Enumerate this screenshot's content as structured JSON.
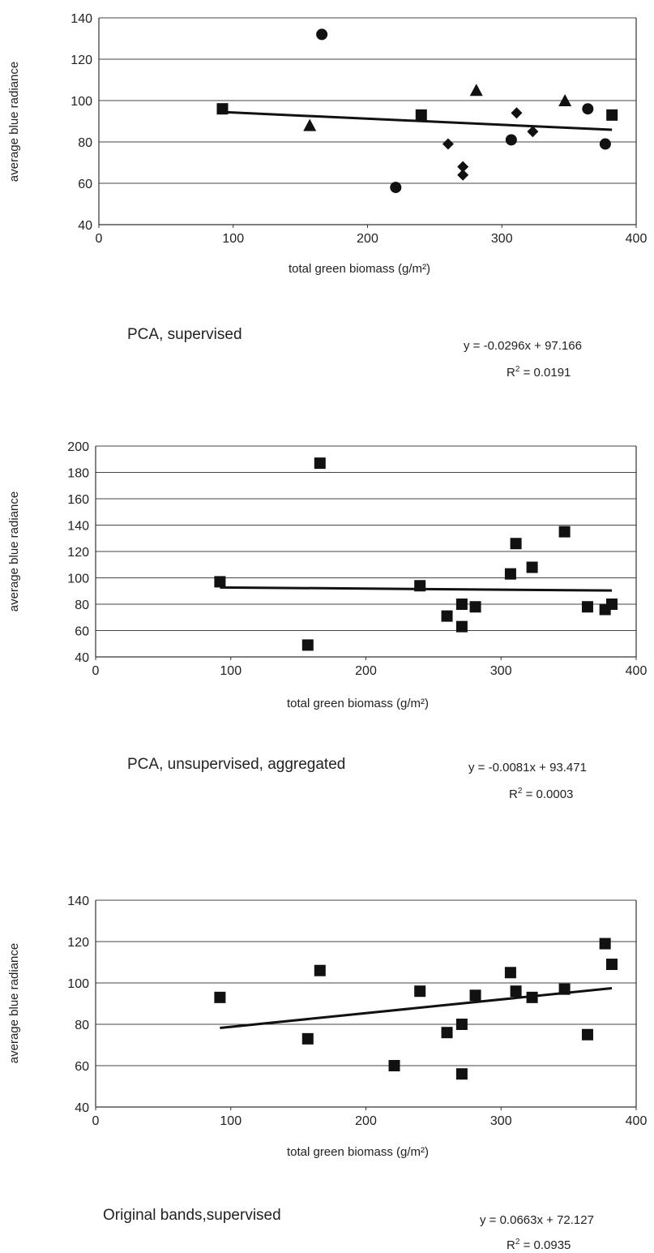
{
  "chart_data": [
    {
      "type": "scatter",
      "xlabel": "total green biomass (g/m²)",
      "ylabel": "average blue radiance",
      "xlim": [
        0,
        400
      ],
      "ylim": [
        40,
        140
      ],
      "xticks": [
        "0",
        "100",
        "200",
        "300",
        "400"
      ],
      "yticks": [
        "40",
        "60",
        "80",
        "100",
        "120",
        "140"
      ],
      "grid": "horizontal",
      "series": [
        {
          "marker": "square",
          "points": [
            [
              92,
              96
            ],
            [
              240,
              93
            ],
            [
              382,
              93
            ]
          ]
        },
        {
          "marker": "circle",
          "points": [
            [
              166,
              132
            ],
            [
              221,
              58
            ],
            [
              307,
              81
            ],
            [
              364,
              96
            ],
            [
              377,
              79
            ]
          ]
        },
        {
          "marker": "triangle",
          "points": [
            [
              157,
              88
            ],
            [
              281,
              105
            ],
            [
              347,
              100
            ]
          ]
        },
        {
          "marker": "diamond",
          "points": [
            [
              260,
              79
            ],
            [
              271,
              68
            ],
            [
              271,
              64
            ],
            [
              311,
              94
            ],
            [
              323,
              85
            ]
          ]
        }
      ],
      "trendline": {
        "slope": -0.0296,
        "intercept": 97.166,
        "x_range": [
          92,
          382
        ]
      },
      "caption": "PCA, supervised",
      "equation": "y = -0.0296x + 97.166",
      "r2_label": "R",
      "r2_sup": "2",
      "r2_value": " = 0.0191"
    },
    {
      "type": "scatter",
      "xlabel": "total green biomass (g/m²)",
      "ylabel": "average blue radiance",
      "xlim": [
        0,
        400
      ],
      "ylim": [
        40,
        200
      ],
      "xticks": [
        "0",
        "100",
        "200",
        "300",
        "400"
      ],
      "yticks": [
        "40",
        "60",
        "80",
        "100",
        "120",
        "140",
        "160",
        "180",
        "200"
      ],
      "grid": "horizontal",
      "series": [
        {
          "marker": "square",
          "points": [
            [
              92,
              97
            ],
            [
              157,
              49
            ],
            [
              166,
              187
            ],
            [
              240,
              94
            ],
            [
              260,
              71
            ],
            [
              271,
              80
            ],
            [
              271,
              63
            ],
            [
              281,
              78
            ],
            [
              307,
              103
            ],
            [
              311,
              126
            ],
            [
              323,
              108
            ],
            [
              347,
              135
            ],
            [
              364,
              78
            ],
            [
              377,
              76
            ],
            [
              382,
              80
            ]
          ]
        }
      ],
      "trendline": {
        "slope": -0.0081,
        "intercept": 93.471,
        "x_range": [
          92,
          382
        ]
      },
      "caption": "PCA, unsupervised, aggregated",
      "equation": "y = -0.0081x + 93.471",
      "r2_label": "R",
      "r2_sup": "2",
      "r2_value": " = 0.0003"
    },
    {
      "type": "scatter",
      "xlabel": "total green biomass (g/m²)",
      "ylabel": "average blue radiance",
      "xlim": [
        0,
        400
      ],
      "ylim": [
        40,
        140
      ],
      "xticks": [
        "0",
        "100",
        "200",
        "300",
        "400"
      ],
      "yticks": [
        "40",
        "60",
        "80",
        "100",
        "120",
        "140"
      ],
      "grid": "horizontal",
      "series": [
        {
          "marker": "square",
          "points": [
            [
              92,
              93
            ],
            [
              157,
              73
            ],
            [
              166,
              106
            ],
            [
              221,
              60
            ],
            [
              240,
              96
            ],
            [
              260,
              76
            ],
            [
              271,
              80
            ],
            [
              271,
              56
            ],
            [
              281,
              94
            ],
            [
              307,
              105
            ],
            [
              311,
              96
            ],
            [
              323,
              93
            ],
            [
              347,
              97
            ],
            [
              364,
              75
            ],
            [
              377,
              119
            ],
            [
              382,
              109
            ]
          ]
        }
      ],
      "trendline": {
        "slope": 0.0663,
        "intercept": 72.127,
        "x_range": [
          92,
          382
        ]
      },
      "caption": "Original bands,supervised",
      "equation": "y = 0.0663x + 72.127",
      "r2_label": "R",
      "r2_sup": "2",
      "r2_value": " = 0.0935"
    }
  ]
}
